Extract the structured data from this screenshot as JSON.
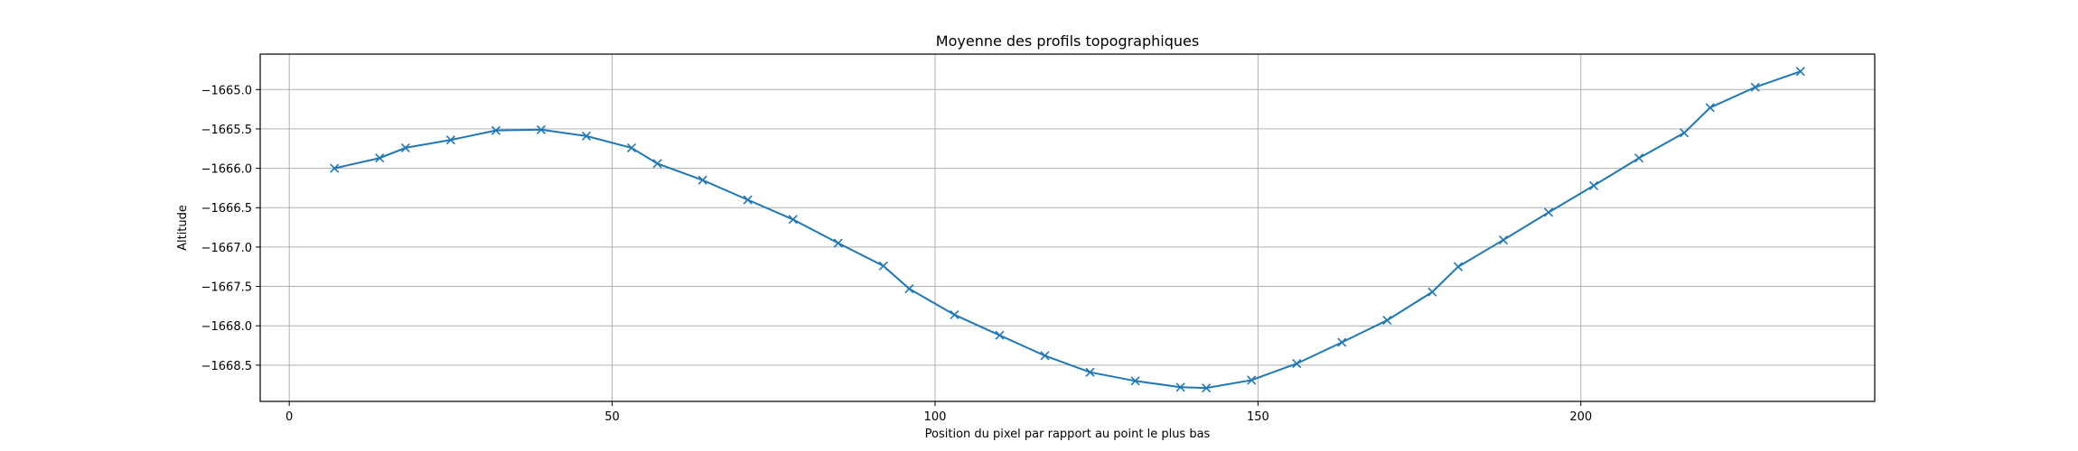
{
  "chart_data": {
    "type": "line",
    "title": "Moyenne des profils topographiques",
    "xlabel": "Position du pixel par rapport au point le plus bas",
    "ylabel": "Altitude",
    "xlim": [
      -4.5,
      245.5
    ],
    "ylim": [
      -1668.96,
      -1664.55
    ],
    "xticks": [
      0,
      50,
      100,
      150,
      200
    ],
    "xtick_labels": [
      "0",
      "50",
      "100",
      "150",
      "200"
    ],
    "yticks": [
      -1665.0,
      -1665.5,
      -1666.0,
      -1666.5,
      -1667.0,
      -1667.5,
      -1668.0,
      -1668.5
    ],
    "ytick_labels": [
      "−1665.0",
      "−1665.5",
      "−1666.0",
      "−1666.5",
      "−1667.0",
      "−1667.5",
      "−1668.0",
      "−1668.5"
    ],
    "grid": true,
    "series": [
      {
        "color": "#1f77b4",
        "marker": "x",
        "x": [
          7,
          14,
          18,
          25,
          32,
          39,
          46,
          53,
          57,
          64,
          71,
          78,
          85,
          92,
          96,
          103,
          110,
          117,
          124,
          131,
          138,
          142,
          149,
          156,
          163,
          170,
          177,
          181,
          188,
          195,
          202,
          209,
          216,
          220,
          227,
          234
        ],
        "y": [
          -1666.0,
          -1665.87,
          -1665.74,
          -1665.64,
          -1665.52,
          -1665.51,
          -1665.59,
          -1665.74,
          -1665.94,
          -1666.15,
          -1666.4,
          -1666.65,
          -1666.95,
          -1667.24,
          -1667.53,
          -1667.86,
          -1668.12,
          -1668.38,
          -1668.59,
          -1668.7,
          -1668.78,
          -1668.79,
          -1668.69,
          -1668.48,
          -1668.21,
          -1667.93,
          -1667.57,
          -1667.25,
          -1666.91,
          -1666.56,
          -1666.22,
          -1665.87,
          -1665.55,
          -1665.23,
          -1664.97,
          -1664.77
        ]
      }
    ]
  }
}
